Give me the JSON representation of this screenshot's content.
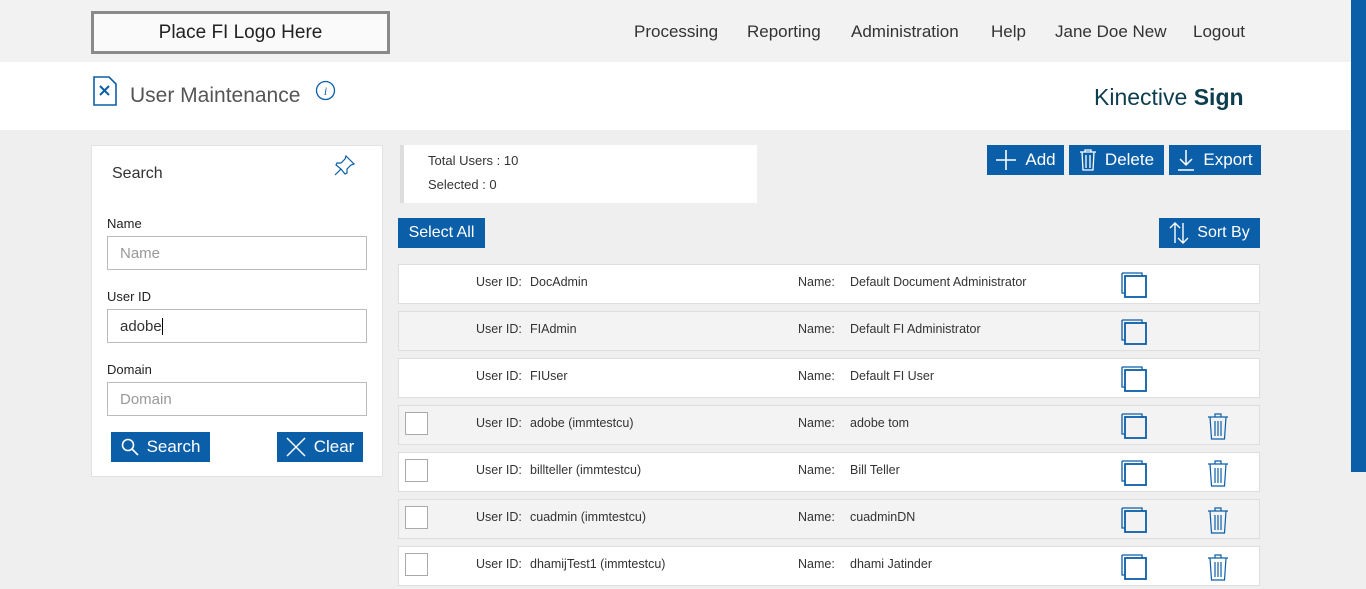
{
  "header": {
    "logo": "Place FI Logo Here",
    "nav": [
      "Processing",
      "Reporting",
      "Administration",
      "Help",
      "Jane Doe New",
      "Logout"
    ],
    "page_title": "User Maintenance",
    "brand": "Kinective",
    "brand_bold": "Sign"
  },
  "search": {
    "title": "Search",
    "fields": [
      {
        "label": "Name",
        "placeholder": "Name"
      },
      {
        "label": "User ID",
        "value": "adobe"
      },
      {
        "label": "Domain",
        "placeholder": "Domain"
      }
    ],
    "search_button": "Search",
    "clear_button": "Clear"
  },
  "summary": {
    "total": "Total Users : 10",
    "selected": "Selected : 0"
  },
  "toolbar": {
    "add": "Add",
    "delete": "Delete",
    "export": "Export",
    "select_all": "Select All",
    "sort_by": "Sort By"
  },
  "list": {
    "user_id_label": "User ID:",
    "name_label": "Name:",
    "rows": [
      {
        "user_id": "DocAdmin",
        "name": "Default Document Administrator",
        "deletable": false
      },
      {
        "user_id": "FIAdmin",
        "name": "Default FI Administrator",
        "deletable": false
      },
      {
        "user_id": "FIUser",
        "name": "Default FI User",
        "deletable": false
      },
      {
        "user_id": "adobe (immtestcu)",
        "name": "adobe tom",
        "deletable": true
      },
      {
        "user_id": "billteller (immtestcu)",
        "name": "Bill Teller",
        "deletable": true
      },
      {
        "user_id": "cuadmin (immtestcu)",
        "name": "cuadminDN",
        "deletable": true
      },
      {
        "user_id": "dhamijTest1 (immtestcu)",
        "name": "dhami Jatinder",
        "deletable": true
      }
    ]
  }
}
